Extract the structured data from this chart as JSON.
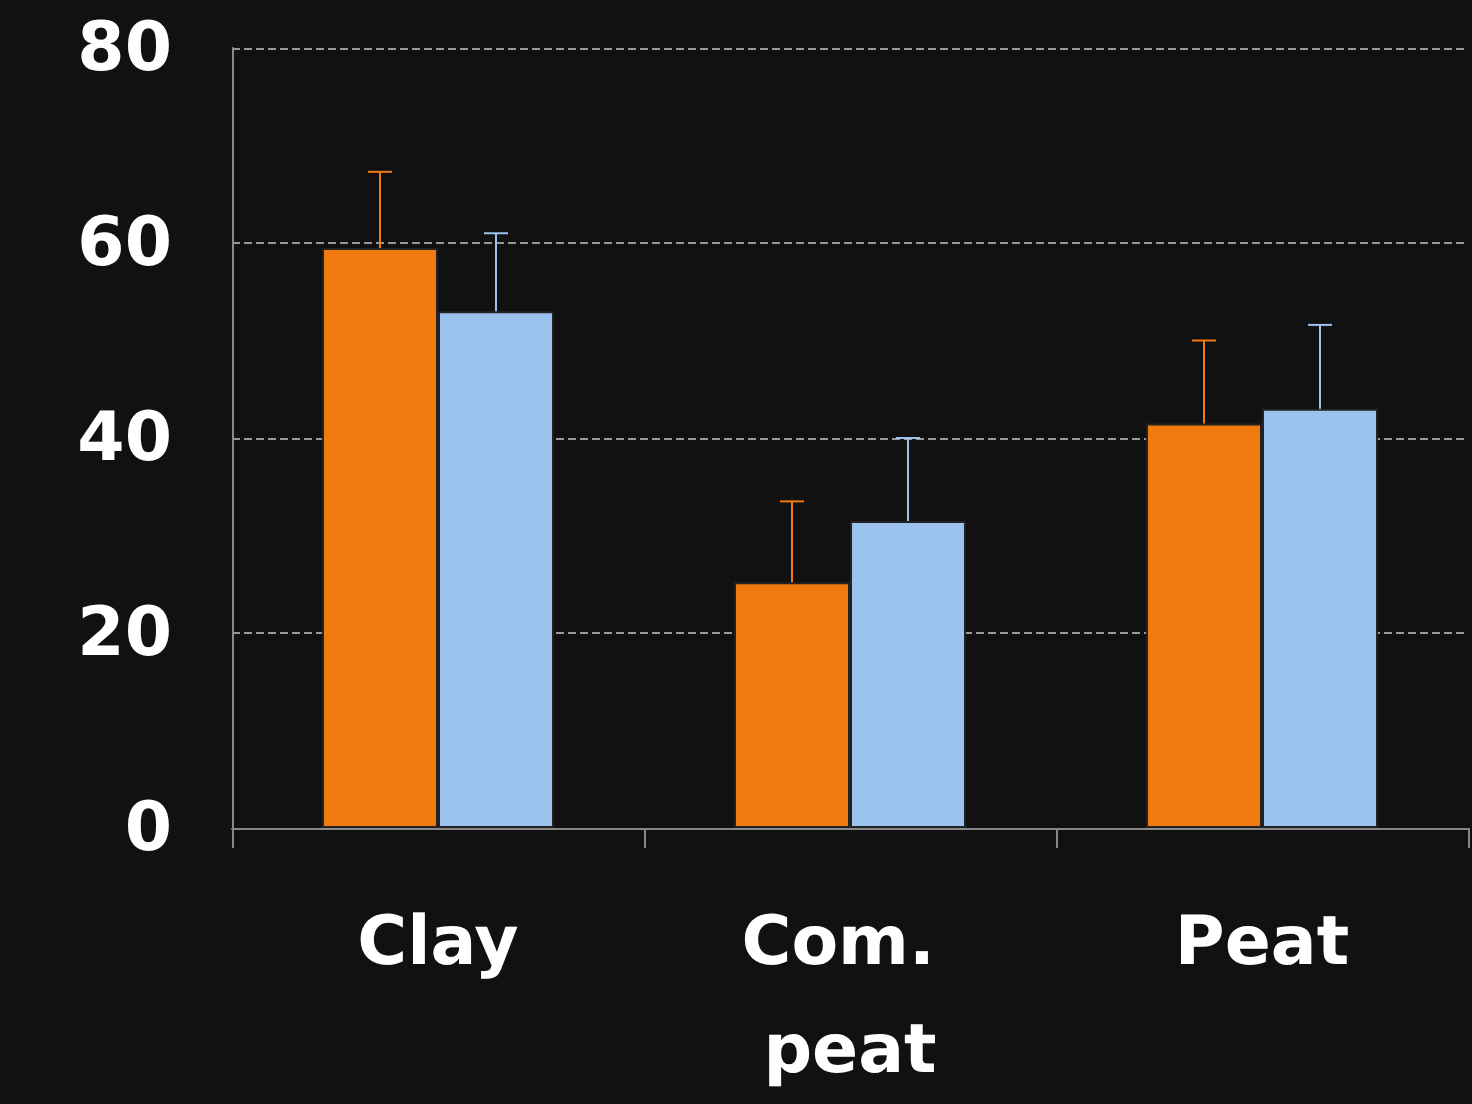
{
  "chart_data": {
    "type": "bar",
    "categories": [
      "Clay",
      "Com. peat",
      "Peat"
    ],
    "series": [
      {
        "color": "#f07a10",
        "values": [
          59.5,
          25.2,
          41.5
        ],
        "errors": [
          [
            59.5,
            67.3
          ],
          [
            25.2,
            33.5
          ],
          [
            41.5,
            50
          ]
        ]
      },
      {
        "color": "#9cc2ee",
        "values": [
          53,
          31.5,
          43
        ],
        "errors": [
          [
            53,
            61
          ],
          [
            31.5,
            40
          ],
          [
            43,
            51.6
          ]
        ]
      }
    ],
    "ylim": [
      0,
      80
    ],
    "yticks": [
      0,
      20,
      40,
      60,
      80
    ],
    "grid": "y"
  }
}
